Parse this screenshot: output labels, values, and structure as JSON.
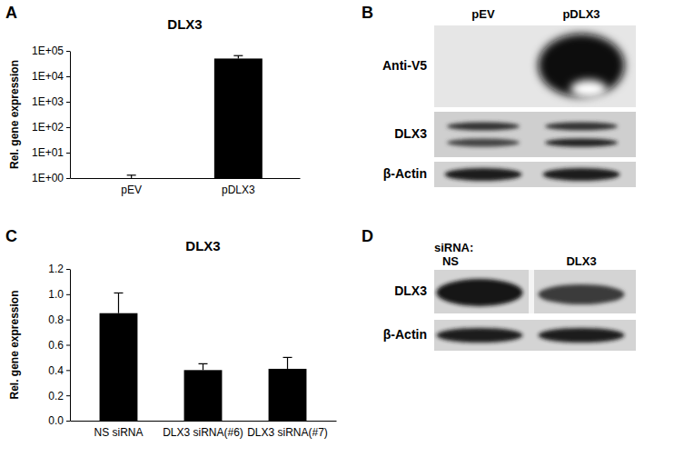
{
  "chart_data": [
    {
      "type": "bar",
      "title": "DLX3",
      "y_label": "Rel. gene expression",
      "categories": [
        "pEV",
        "pDLX3"
      ],
      "values": [
        1,
        50000
      ],
      "errors": [
        0.3,
        15000
      ],
      "color": "#000000",
      "log": "y",
      "ylim": [
        1,
        100000
      ],
      "yticks": [
        {
          "value": 1,
          "label": "1E+00"
        },
        {
          "value": 10,
          "label": "1E+01"
        },
        {
          "value": 100,
          "label": "1E+02"
        },
        {
          "value": 1000,
          "label": "1E+03"
        },
        {
          "value": 10000,
          "label": "1E+04"
        },
        {
          "value": 100000,
          "label": "1E+05"
        }
      ],
      "grid": false
    },
    {
      "type": "bar",
      "title": "DLX3",
      "y_label": "Rel. gene expression",
      "categories": [
        "NS siRNA",
        "DLX3 siRNA(#6)",
        "DLX3 siRNA(#7)"
      ],
      "values": [
        0.85,
        0.4,
        0.41
      ],
      "errors": [
        0.16,
        0.05,
        0.09
      ],
      "color": "#000000",
      "ylim": [
        0,
        1.2
      ],
      "yticks": [
        {
          "value": 0,
          "label": "0.0"
        },
        0.2,
        0.4,
        0.6,
        0.8,
        {
          "value": 1,
          "label": "1.0"
        },
        1.2
      ],
      "grid": false
    }
  ],
  "figure": {
    "panel_labels": [
      "A",
      "B",
      "C",
      "D"
    ]
  },
  "blots": [
    {
      "lanes": [
        "pEV",
        "pDLX3"
      ],
      "rows": [
        "Anti-V5",
        "DLX3",
        "β-Actin"
      ]
    },
    {
      "header": "siRNA:",
      "lanes": [
        "NS",
        "DLX3"
      ],
      "rows": [
        "DLX3",
        "β-Actin"
      ]
    }
  ]
}
